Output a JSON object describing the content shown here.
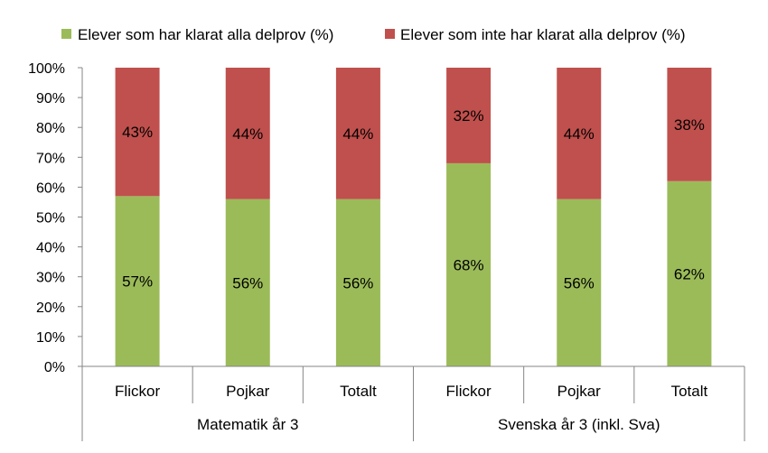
{
  "colors": {
    "passed": "#9bbb59",
    "failed": "#c0504d",
    "axis": "#868686"
  },
  "legend": {
    "passed_label": "Elever som har klarat alla delprov (%)",
    "failed_label": "Elever som inte har klarat alla delprov (%)"
  },
  "chart_data": {
    "type": "bar",
    "stacked": true,
    "ylim": [
      0,
      100
    ],
    "yticks": [
      "0%",
      "10%",
      "20%",
      "30%",
      "40%",
      "50%",
      "60%",
      "70%",
      "80%",
      "90%",
      "100%"
    ],
    "categories": [
      "Flickor",
      "Pojkar",
      "Totalt",
      "Flickor",
      "Pojkar",
      "Totalt"
    ],
    "groups": [
      {
        "name": "Matematik år 3",
        "count": 3
      },
      {
        "name": "Svenska år 3 (inkl. Sva)",
        "count": 3
      }
    ],
    "series": [
      {
        "name": "Elever som har klarat alla delprov (%)",
        "values": [
          57,
          56,
          56,
          68,
          56,
          62
        ]
      },
      {
        "name": "Elever som inte har klarat alla delprov (%)",
        "values": [
          43,
          44,
          44,
          32,
          44,
          38
        ]
      }
    ],
    "data_labels": [
      [
        "57%",
        "56%",
        "56%",
        "68%",
        "56%",
        "62%"
      ],
      [
        "43%",
        "44%",
        "44%",
        "32%",
        "44%",
        "38%"
      ]
    ],
    "grid": false,
    "legend_position": "top"
  }
}
